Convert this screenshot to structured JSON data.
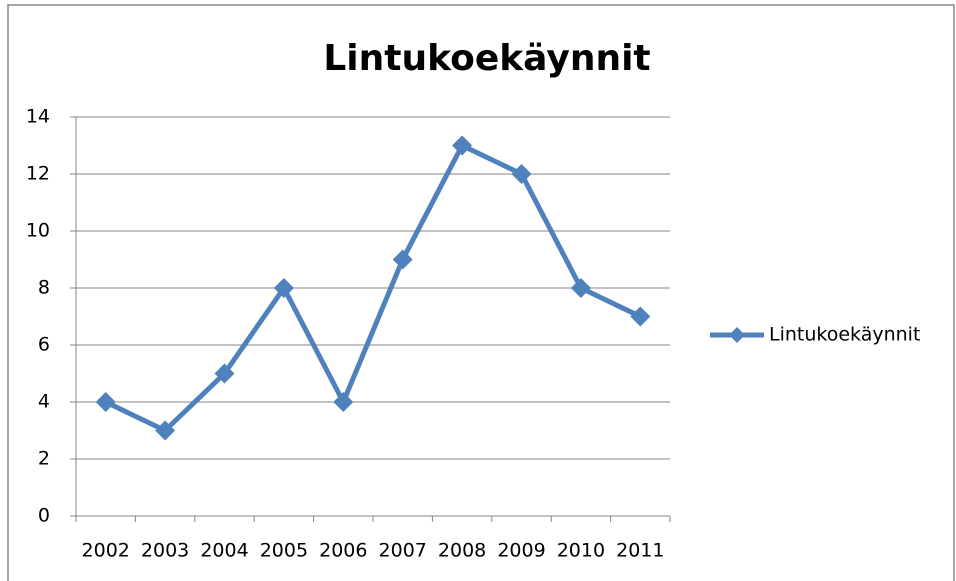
{
  "chart_data": {
    "type": "line",
    "title": "Lintukoekäynnit",
    "categories": [
      "2002",
      "2003",
      "2004",
      "2005",
      "2006",
      "2007",
      "2008",
      "2009",
      "2010",
      "2011"
    ],
    "series": [
      {
        "name": "Lintukoekäynnit",
        "color": "#4f81bd",
        "values": [
          4,
          3,
          5,
          8,
          4,
          9,
          13,
          12,
          8,
          7
        ]
      }
    ],
    "ylim": [
      0,
      14
    ],
    "yticks": [
      0,
      2,
      4,
      6,
      8,
      10,
      12,
      14
    ],
    "grid": true,
    "legend": "right"
  }
}
